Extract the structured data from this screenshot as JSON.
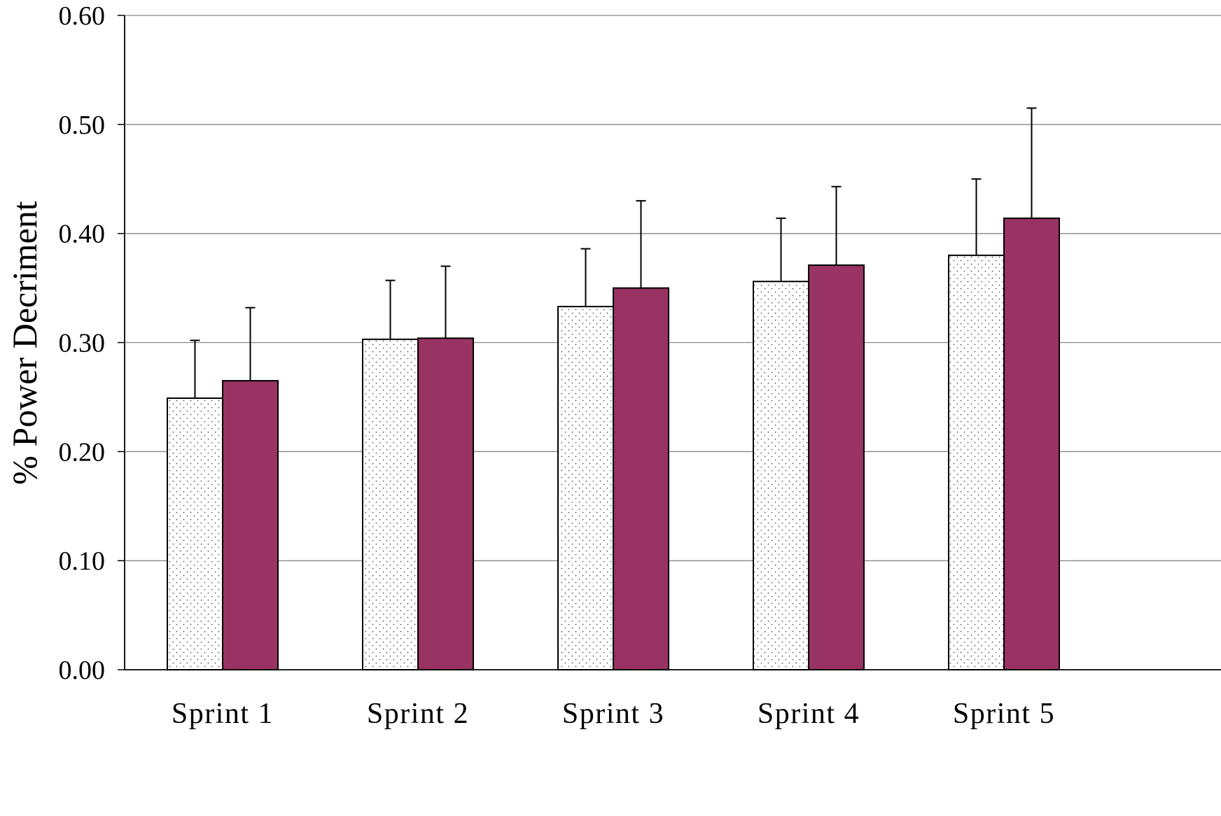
{
  "chart_data": {
    "type": "bar",
    "title": "",
    "xlabel": "",
    "ylabel": "% Power Decriment",
    "ylim": [
      0,
      0.6
    ],
    "yticks": [
      "0.00",
      "0.10",
      "0.20",
      "0.30",
      "0.40",
      "0.50",
      "0.60"
    ],
    "yticks_values": [
      0,
      0.1,
      0.2,
      0.3,
      0.4,
      0.5,
      0.6
    ],
    "grid": true,
    "legend": "none",
    "categories": [
      "Sprint 1",
      "Sprint 2",
      "Sprint 3",
      "Sprint 4",
      "Sprint 5"
    ],
    "series": [
      {
        "fill": "dotted-white",
        "color": "#ffffff",
        "values": [
          0.249,
          0.303,
          0.333,
          0.356,
          0.38
        ],
        "error": [
          0.053,
          0.054,
          0.053,
          0.058,
          0.07
        ]
      },
      {
        "fill": "solid",
        "color": "#983363",
        "values": [
          0.265,
          0.304,
          0.35,
          0.371,
          0.414
        ],
        "error": [
          0.067,
          0.066,
          0.08,
          0.072,
          0.101
        ]
      }
    ]
  }
}
